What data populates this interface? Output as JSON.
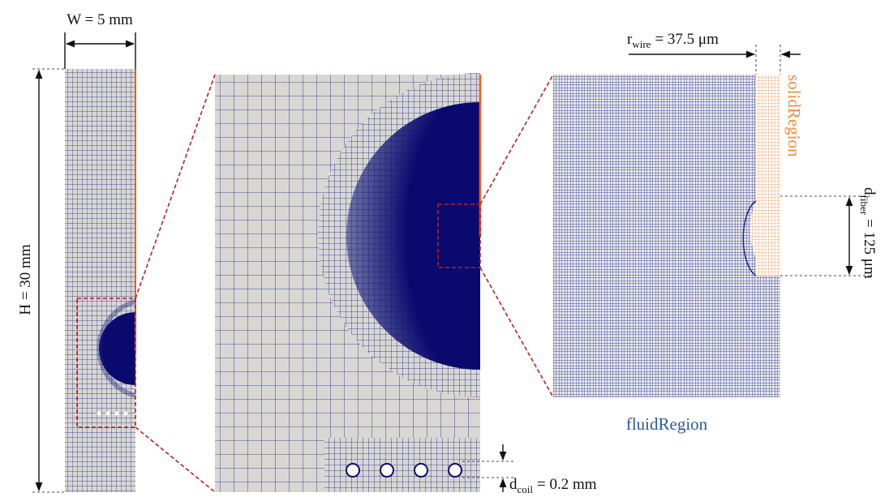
{
  "labels": {
    "width": "W = 5 mm",
    "height": "H = 30 mm",
    "wire": {
      "symbol": "r",
      "subscript": "wire",
      "value": "= 37.5 μm"
    },
    "fiber": {
      "symbol": "d",
      "subscript": "fiber",
      "value": "= 125 μm"
    },
    "coil": {
      "symbol": "d",
      "subscript": "coil",
      "value": "= 0.2 mm"
    },
    "solid_region": "solidRegion",
    "fluid_region": "fluidRegion"
  }
}
